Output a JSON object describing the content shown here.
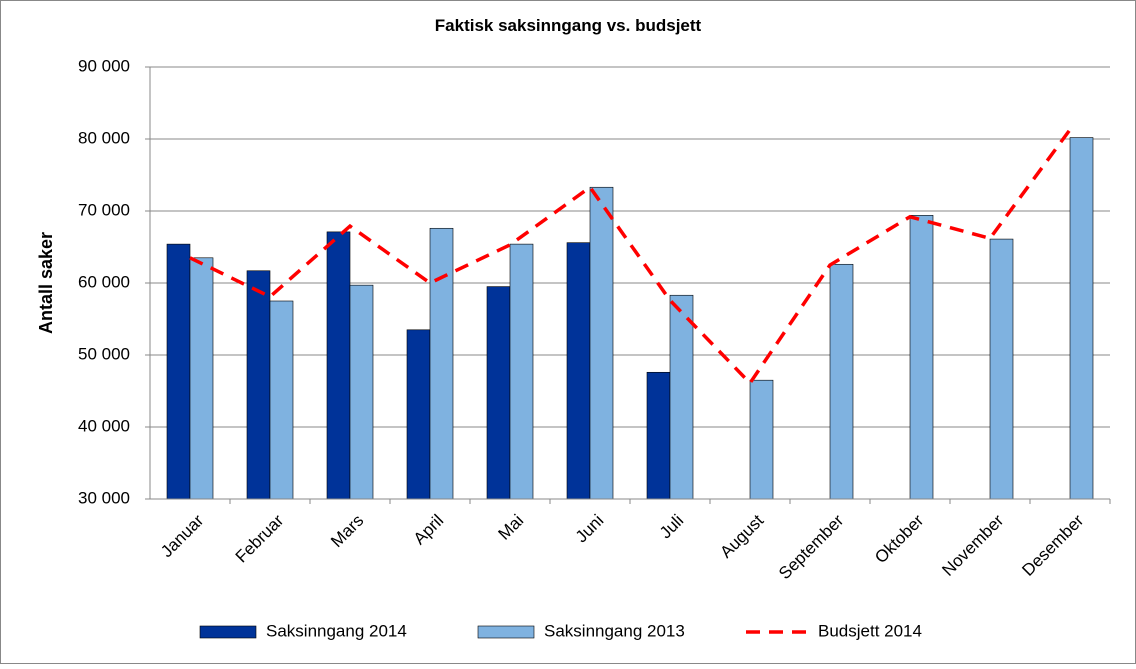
{
  "chart_data": {
    "type": "bar",
    "title": "Faktisk saksinngang vs. budsjett",
    "y_label": "Antall saker",
    "categories": [
      "Januar",
      "Februar",
      "Mars",
      "April",
      "Mai",
      "Juni",
      "Juli",
      "August",
      "September",
      "Oktober",
      "November",
      "Desember"
    ],
    "series": [
      {
        "name": "Saksinngang 2014",
        "type": "bar",
        "color": "#003399",
        "values": [
          65400,
          61700,
          67100,
          53500,
          59500,
          65600,
          47600,
          null,
          null,
          null,
          null,
          null
        ]
      },
      {
        "name": "Saksinngang 2013",
        "type": "bar",
        "color": "#7fb2e0",
        "values": [
          63500,
          57500,
          59700,
          67600,
          65400,
          73300,
          58300,
          46500,
          62600,
          69400,
          66100,
          80200
        ]
      },
      {
        "name": "Budsjett 2014",
        "type": "line",
        "dash": "dashed",
        "color": "#ff0000",
        "values": [
          63500,
          58100,
          67900,
          60000,
          65300,
          73300,
          57600,
          46100,
          62500,
          69200,
          66200,
          81300
        ]
      }
    ],
    "ylim": [
      30000,
      90000
    ],
    "yticks": [
      {
        "value": 30000,
        "label": "30 000"
      },
      {
        "value": 40000,
        "label": "40 000"
      },
      {
        "value": 50000,
        "label": "50 000"
      },
      {
        "value": 60000,
        "label": "60 000"
      },
      {
        "value": 70000,
        "label": "70 000"
      },
      {
        "value": 80000,
        "label": "80 000"
      },
      {
        "value": 90000,
        "label": "90 000"
      }
    ],
    "grid": true,
    "legend": "bottom"
  }
}
